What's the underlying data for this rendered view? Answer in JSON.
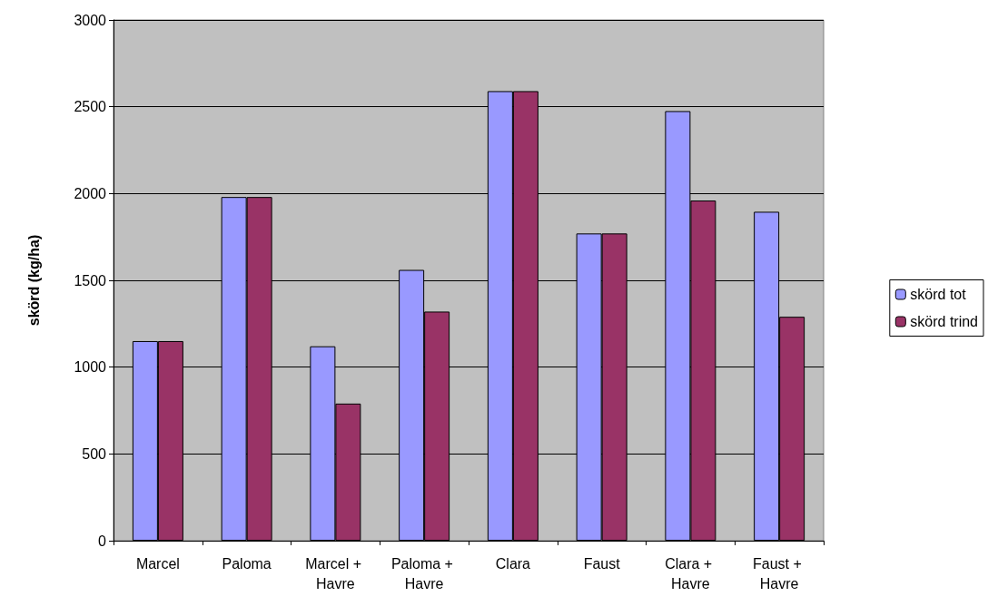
{
  "chart_data": {
    "type": "bar",
    "ylabel": "skörd (kg/ha)",
    "categories": [
      "Marcel",
      "Paloma",
      "Marcel + Havre",
      "Paloma + Havre",
      "Clara",
      "Faust",
      "Clara + Havre",
      "Faust + Havre"
    ],
    "series": [
      {
        "name": "skörd tot",
        "color": "#9999ff",
        "values": [
          1150,
          1980,
          1120,
          1560,
          2590,
          1770,
          2475,
          1895
        ]
      },
      {
        "name": "skörd trind",
        "color": "#993366",
        "values": [
          1150,
          1980,
          790,
          1320,
          2590,
          1770,
          1960,
          1290
        ]
      }
    ],
    "ylim": [
      0,
      3000
    ],
    "yticks": [
      0,
      500,
      1000,
      1500,
      2000,
      2500,
      3000
    ],
    "grid": "y",
    "legend": "right"
  }
}
